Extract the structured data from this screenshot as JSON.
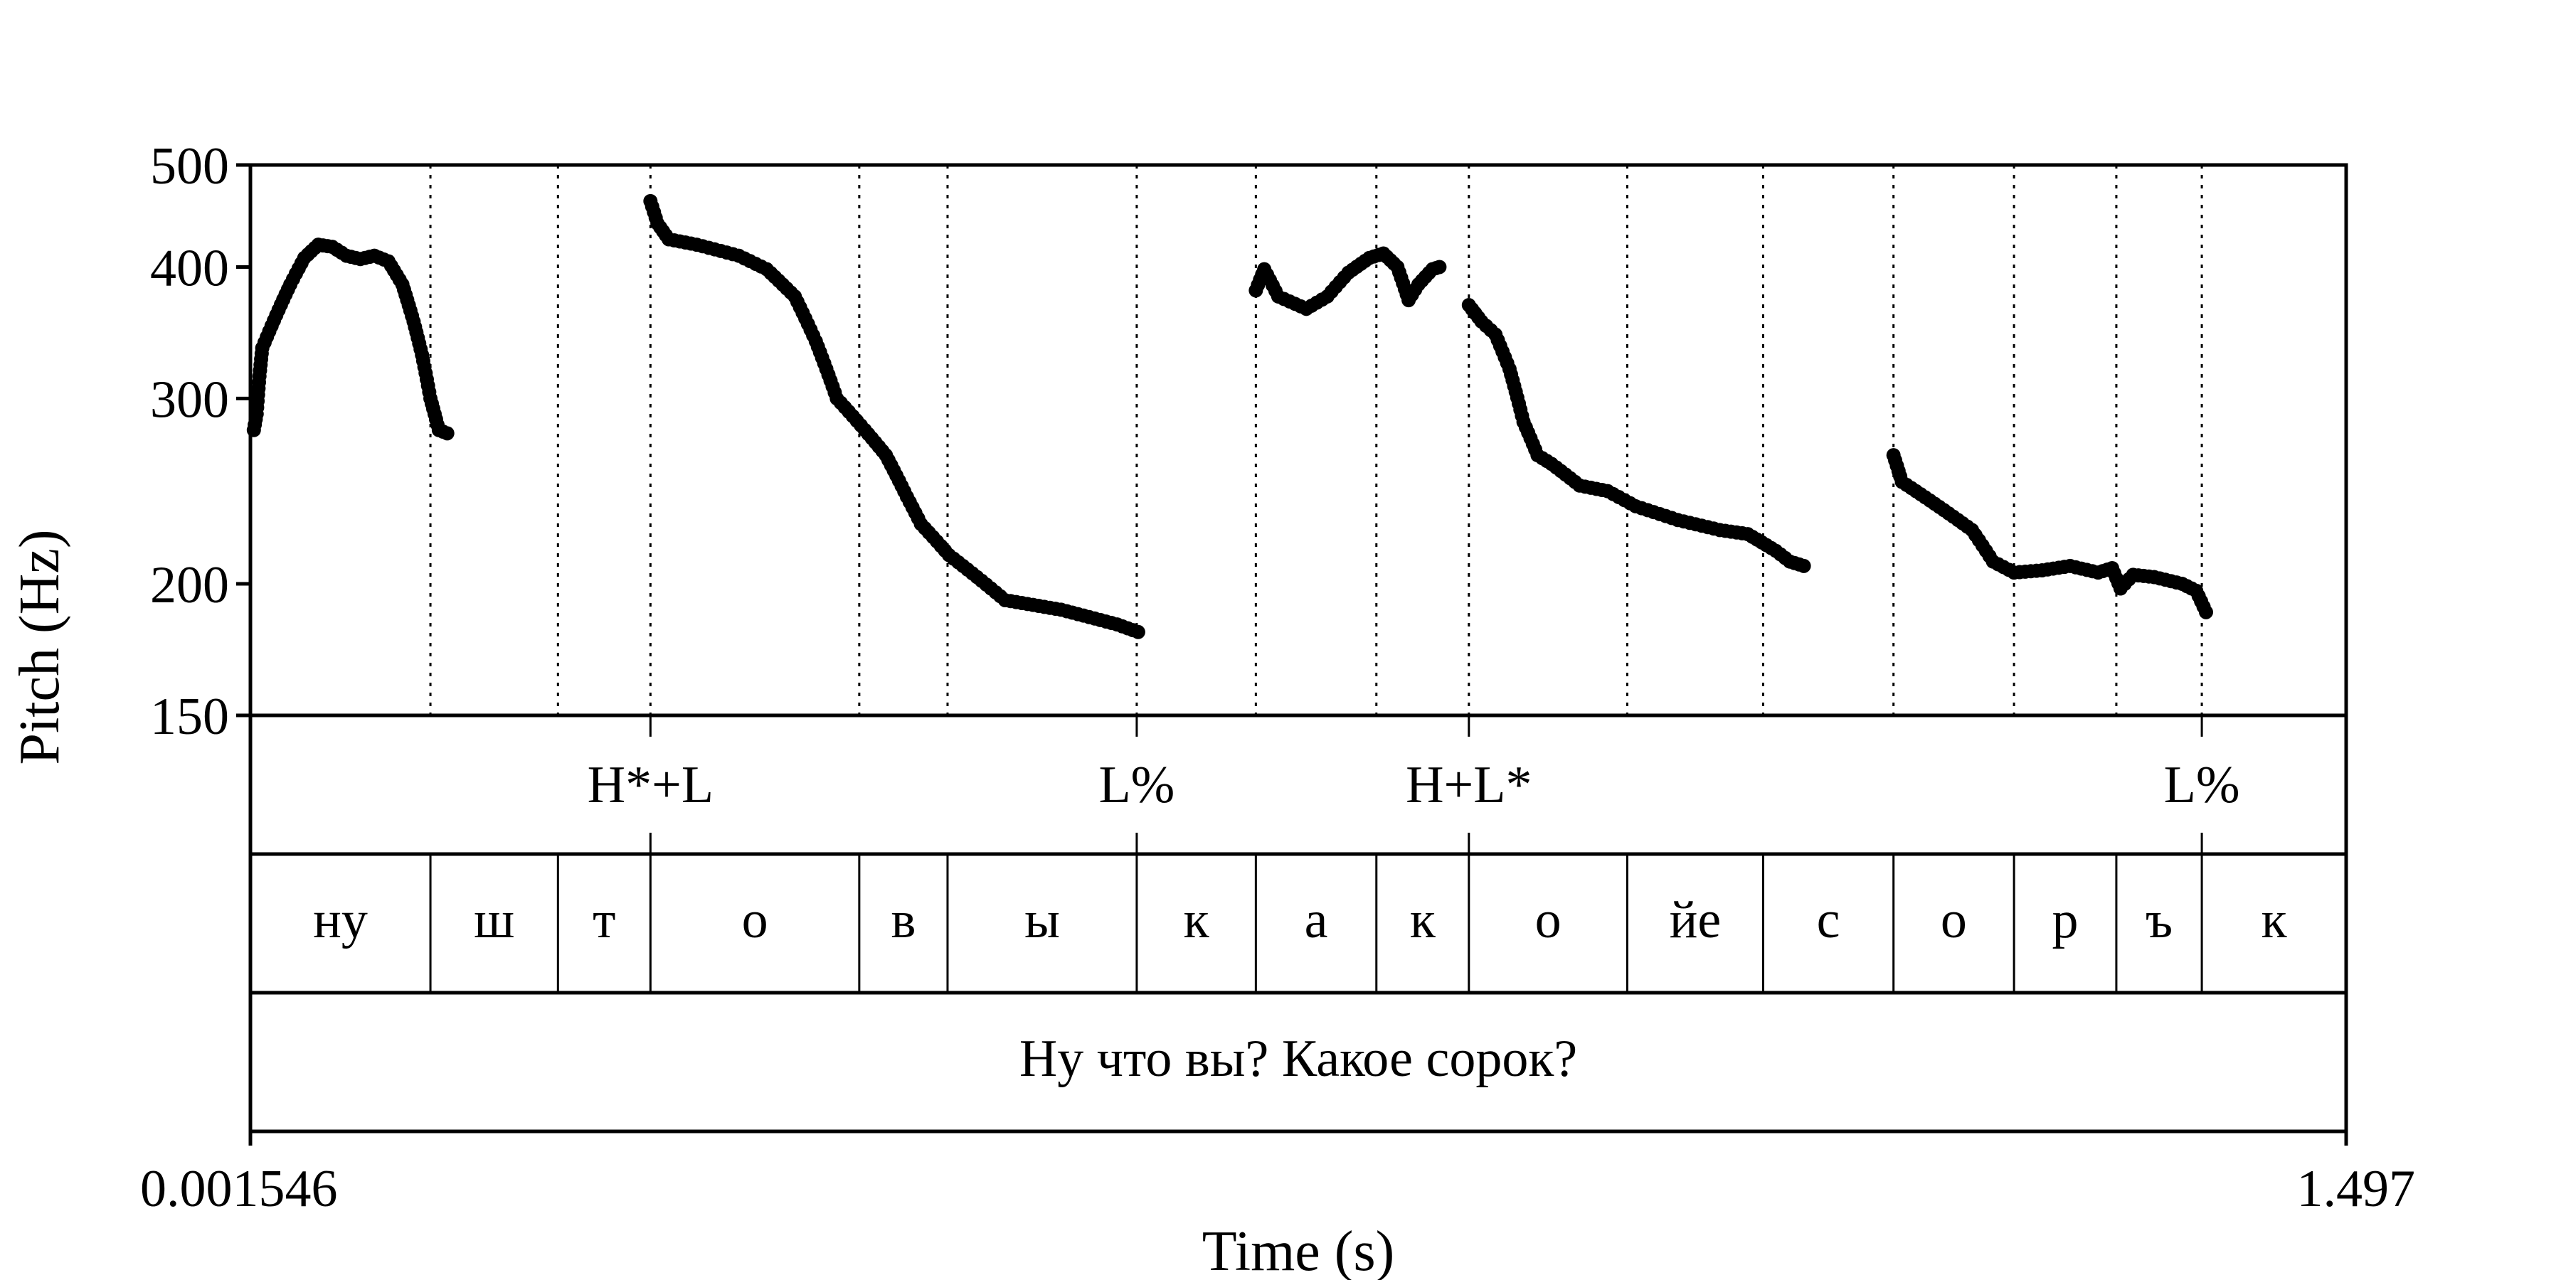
{
  "chart_data": {
    "type": "scatter",
    "title": "",
    "xlabel": "Time (s)",
    "ylabel": "Pitch (Hz)",
    "xlim": [
      0.001546,
      1.497
    ],
    "ylim": [
      150,
      500
    ],
    "yscale": "log",
    "x_tick_labels": [
      "0.001546",
      "1.497"
    ],
    "y_ticks": [
      500,
      400,
      300,
      200,
      150
    ],
    "y_tick_labels": [
      "500",
      "400",
      "300",
      "200",
      "150"
    ],
    "boundaries": [
      0.13,
      0.221,
      0.287,
      0.436,
      0.499,
      0.634,
      0.719,
      0.805,
      0.871,
      0.984,
      1.081,
      1.174,
      1.26,
      1.333,
      1.394
    ],
    "tones": [
      {
        "label": "H*+L",
        "t": 0.287
      },
      {
        "label": "L%",
        "t": 0.634
      },
      {
        "label": "H+L*",
        "t": 0.871
      },
      {
        "label": "L%",
        "t": 1.394
      }
    ],
    "segments": [
      {
        "label": "ну",
        "start": 0.001546,
        "end": 0.13
      },
      {
        "label": "ш",
        "start": 0.13,
        "end": 0.221
      },
      {
        "label": "т",
        "start": 0.221,
        "end": 0.287
      },
      {
        "label": "о",
        "start": 0.287,
        "end": 0.436
      },
      {
        "label": "в",
        "start": 0.436,
        "end": 0.499
      },
      {
        "label": "ы",
        "start": 0.499,
        "end": 0.634
      },
      {
        "label": "к",
        "start": 0.634,
        "end": 0.719
      },
      {
        "label": "а",
        "start": 0.719,
        "end": 0.805
      },
      {
        "label": "к",
        "start": 0.805,
        "end": 0.871
      },
      {
        "label": "о",
        "start": 0.871,
        "end": 0.984
      },
      {
        "label": "йе",
        "start": 0.984,
        "end": 1.081
      },
      {
        "label": "с",
        "start": 1.081,
        "end": 1.174
      },
      {
        "label": "о",
        "start": 1.174,
        "end": 1.26
      },
      {
        "label": "р",
        "start": 1.26,
        "end": 1.333
      },
      {
        "label": "ъ",
        "start": 1.333,
        "end": 1.394
      },
      {
        "label": "к",
        "start": 1.394,
        "end": 1.497
      }
    ],
    "sentence": "Ну что вы? Какое сорок?",
    "pitch_anchors": [
      [
        [
          0.004,
          280
        ],
        [
          0.006,
          290
        ],
        [
          0.008,
          315
        ],
        [
          0.01,
          335
        ],
        [
          0.02,
          360
        ],
        [
          0.03,
          385
        ],
        [
          0.04,
          408
        ],
        [
          0.05,
          420
        ],
        [
          0.06,
          418
        ],
        [
          0.07,
          410
        ],
        [
          0.08,
          407
        ],
        [
          0.09,
          410
        ],
        [
          0.1,
          405
        ],
        [
          0.11,
          385
        ],
        [
          0.118,
          355
        ],
        [
          0.124,
          330
        ],
        [
          0.13,
          300
        ],
        [
          0.136,
          280
        ],
        [
          0.142,
          278
        ]
      ],
      [
        [
          0.287,
          462
        ],
        [
          0.292,
          440
        ],
        [
          0.3,
          425
        ],
        [
          0.32,
          420
        ],
        [
          0.35,
          410
        ],
        [
          0.37,
          398
        ],
        [
          0.39,
          375
        ],
        [
          0.405,
          340
        ],
        [
          0.42,
          300
        ],
        [
          0.44,
          280
        ],
        [
          0.455,
          265
        ],
        [
          0.47,
          242
        ],
        [
          0.48,
          228
        ],
        [
          0.5,
          213
        ],
        [
          0.52,
          203
        ],
        [
          0.54,
          193
        ],
        [
          0.56,
          191
        ],
        [
          0.58,
          189
        ],
        [
          0.6,
          186
        ],
        [
          0.62,
          183
        ],
        [
          0.635,
          180
        ]
      ],
      [
        [
          0.719,
          380
        ],
        [
          0.725,
          398
        ],
        [
          0.735,
          375
        ],
        [
          0.755,
          365
        ],
        [
          0.77,
          375
        ],
        [
          0.785,
          395
        ],
        [
          0.8,
          408
        ],
        [
          0.81,
          412
        ],
        [
          0.82,
          400
        ],
        [
          0.828,
          372
        ],
        [
          0.835,
          385
        ],
        [
          0.845,
          398
        ],
        [
          0.85,
          400
        ]
      ],
      [
        [
          0.871,
          368
        ],
        [
          0.88,
          355
        ],
        [
          0.89,
          345
        ],
        [
          0.9,
          320
        ],
        [
          0.91,
          285
        ],
        [
          0.92,
          265
        ],
        [
          0.93,
          260
        ],
        [
          0.95,
          248
        ],
        [
          0.97,
          245
        ],
        [
          0.99,
          237
        ],
        [
          1.02,
          230
        ],
        [
          1.05,
          225
        ],
        [
          1.07,
          223
        ],
        [
          1.09,
          215
        ],
        [
          1.1,
          210
        ],
        [
          1.11,
          208
        ]
      ],
      [
        [
          1.174,
          265
        ],
        [
          1.18,
          250
        ],
        [
          1.19,
          245
        ],
        [
          1.21,
          235
        ],
        [
          1.23,
          225
        ],
        [
          1.245,
          210
        ],
        [
          1.26,
          205
        ],
        [
          1.28,
          206
        ],
        [
          1.3,
          208
        ],
        [
          1.32,
          205
        ],
        [
          1.33,
          207
        ],
        [
          1.336,
          198
        ],
        [
          1.345,
          204
        ],
        [
          1.36,
          203
        ],
        [
          1.38,
          200
        ],
        [
          1.39,
          197
        ],
        [
          1.397,
          188
        ]
      ]
    ]
  }
}
